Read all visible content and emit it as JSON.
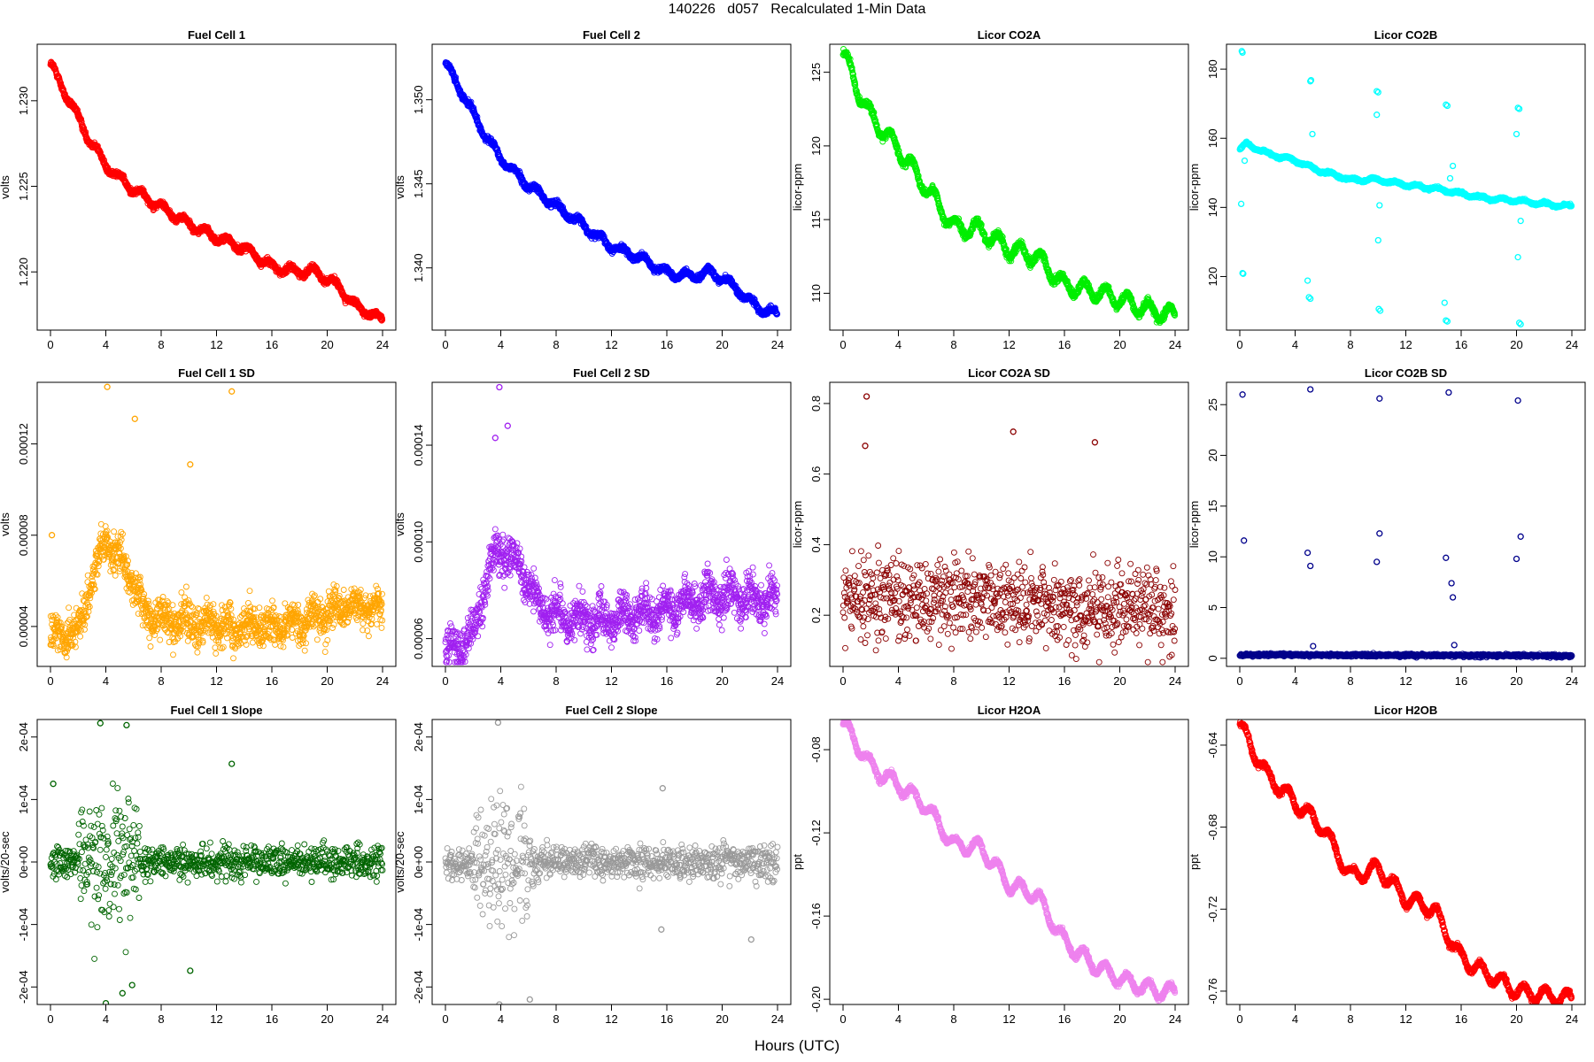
{
  "page": {
    "title": "140226   d057   Recalculated 1-Min Data",
    "xlabel": "Hours (UTC)"
  },
  "chart_data": [
    {
      "title": "Fuel Cell 1",
      "type": "scatter",
      "ylabel": "volts",
      "color": "#ff0000",
      "xlim": [
        0,
        24
      ],
      "ylim": [
        1.2166,
        1.2333
      ],
      "xticks": [
        0,
        4,
        8,
        12,
        16,
        20,
        24
      ],
      "yticks": [
        1.22,
        1.225,
        1.23
      ],
      "ytick_labels": [
        "1.220",
        "1.225",
        "1.230"
      ],
      "trend": [
        [
          0,
          1.2322
        ],
        [
          0.5,
          1.2313
        ],
        [
          1.5,
          1.2298
        ],
        [
          2.5,
          1.2282
        ],
        [
          4,
          1.2262
        ],
        [
          6,
          1.2248
        ],
        [
          8,
          1.2238
        ],
        [
          10,
          1.2228
        ],
        [
          12,
          1.222
        ],
        [
          14,
          1.2214
        ],
        [
          16,
          1.2203
        ],
        [
          18,
          1.22
        ],
        [
          19,
          1.2201
        ],
        [
          20,
          1.2196
        ],
        [
          21,
          1.219
        ],
        [
          22,
          1.218
        ],
        [
          23,
          1.2176
        ],
        [
          24,
          1.2172
        ]
      ],
      "wiggle": 0.00022,
      "noise": 0.00015
    },
    {
      "title": "Fuel Cell 2",
      "type": "scatter",
      "ylabel": "volts",
      "color": "#0000ff",
      "xlim": [
        0,
        24
      ],
      "ylim": [
        1.3363,
        1.3533
      ],
      "xticks": [
        0,
        4,
        8,
        12,
        16,
        20,
        24
      ],
      "yticks": [
        1.34,
        1.345,
        1.35
      ],
      "ytick_labels": [
        "1.340",
        "1.345",
        "1.350"
      ],
      "trend": [
        [
          0,
          1.3522
        ],
        [
          0.5,
          1.3514
        ],
        [
          1.5,
          1.35
        ],
        [
          2.5,
          1.3484
        ],
        [
          4,
          1.3465
        ],
        [
          6,
          1.3449
        ],
        [
          8,
          1.3437
        ],
        [
          10,
          1.3425
        ],
        [
          12,
          1.3413
        ],
        [
          14,
          1.3406
        ],
        [
          16,
          1.3397
        ],
        [
          18,
          1.3395
        ],
        [
          19,
          1.3398
        ],
        [
          20,
          1.3394
        ],
        [
          21,
          1.3388
        ],
        [
          22,
          1.338
        ],
        [
          23,
          1.3375
        ],
        [
          24,
          1.3372
        ]
      ],
      "wiggle": 0.00022,
      "noise": 0.00015
    },
    {
      "title": "Licor CO2A",
      "type": "scatter",
      "ylabel": "licor-ppm",
      "color": "#00ee00",
      "xlim": [
        0,
        24
      ],
      "ylim": [
        107.5,
        126.9
      ],
      "xticks": [
        0,
        4,
        8,
        12,
        16,
        20,
        24
      ],
      "yticks": [
        110,
        115,
        120,
        125
      ],
      "ytick_labels": [
        "110",
        "115",
        "120",
        "125"
      ],
      "trend": [
        [
          0,
          126.3
        ],
        [
          1,
          124
        ],
        [
          2,
          122
        ],
        [
          4,
          119.8
        ],
        [
          6,
          117.2
        ],
        [
          8,
          114.5
        ],
        [
          10,
          114.3
        ],
        [
          12,
          113
        ],
        [
          14,
          112.5
        ],
        [
          16,
          110.5
        ],
        [
          18,
          110.2
        ],
        [
          20,
          109.6
        ],
        [
          22,
          108.9
        ],
        [
          24,
          108.5
        ]
      ],
      "wiggle": 0.55,
      "noise": 0.2
    },
    {
      "title": "Licor CO2B",
      "type": "scatter",
      "ylabel": "licor-ppm",
      "color": "#00ffff",
      "xlim": [
        0,
        24
      ],
      "ylim": [
        104.5,
        187.2
      ],
      "xticks": [
        0,
        4,
        8,
        12,
        16,
        20,
        24
      ],
      "yticks": [
        120,
        140,
        160,
        180
      ],
      "ytick_labels": [
        "120",
        "140",
        "160",
        "180"
      ],
      "trend": [
        [
          0,
          156.8
        ],
        [
          0.5,
          158.4
        ],
        [
          2,
          155.6
        ],
        [
          4,
          153.6
        ],
        [
          5.5,
          151
        ],
        [
          8,
          148
        ],
        [
          10,
          148
        ],
        [
          12,
          146.5
        ],
        [
          14,
          145.5
        ],
        [
          16,
          144
        ],
        [
          18,
          142.5
        ],
        [
          20,
          142
        ],
        [
          22,
          141
        ],
        [
          24,
          140.3
        ]
      ],
      "wiggle": 0.4,
      "noise": 0.3,
      "outliers": [
        [
          0.15,
          185.2
        ],
        [
          0.2,
          184.8
        ],
        [
          0.1,
          141.0
        ],
        [
          0.2,
          121.0
        ],
        [
          0.25,
          120.8
        ],
        [
          0.35,
          153.5
        ],
        [
          5.1,
          176.5
        ],
        [
          5.15,
          176.8
        ],
        [
          5.25,
          161.2
        ],
        [
          4.9,
          118.8
        ],
        [
          5.0,
          114.0
        ],
        [
          5.1,
          113.6
        ],
        [
          9.9,
          173.6
        ],
        [
          10.0,
          173.3
        ],
        [
          9.9,
          166.8
        ],
        [
          10.1,
          140.6
        ],
        [
          10.0,
          130.5
        ],
        [
          10.05,
          110.6
        ],
        [
          10.15,
          110.1
        ],
        [
          14.9,
          169.7
        ],
        [
          15.0,
          169.4
        ],
        [
          15.2,
          148.4
        ],
        [
          15.4,
          152.0
        ],
        [
          14.8,
          112.4
        ],
        [
          14.9,
          107.3
        ],
        [
          15.0,
          107.0
        ],
        [
          20.1,
          168.8
        ],
        [
          20.2,
          168.5
        ],
        [
          20.0,
          161.2
        ],
        [
          20.3,
          136.1
        ],
        [
          20.1,
          125.6
        ],
        [
          20.2,
          106.6
        ],
        [
          20.3,
          106.2
        ]
      ]
    },
    {
      "title": "Fuel Cell 1 SD",
      "type": "scatter",
      "ylabel": "volts",
      "color": "#ffa500",
      "xlim": [
        0,
        24
      ],
      "ylim": [
        2.25e-05,
        0.000147
      ],
      "xticks": [
        0,
        4,
        8,
        12,
        16,
        20,
        24
      ],
      "yticks": [
        4e-05,
        8e-05,
        0.00012
      ],
      "ytick_labels": [
        "0.00004",
        "0.00008",
        "0.00012"
      ],
      "trend": [
        [
          0,
          3.5e-05
        ],
        [
          2,
          3.8e-05
        ],
        [
          3,
          6e-05
        ],
        [
          4,
          7.8e-05
        ],
        [
          5,
          7e-05
        ],
        [
          6,
          6e-05
        ],
        [
          6.8,
          4.5e-05
        ],
        [
          9,
          4.3e-05
        ],
        [
          12,
          4e-05
        ],
        [
          16,
          4e-05
        ],
        [
          18,
          4.2e-05
        ],
        [
          20,
          4.6e-05
        ],
        [
          22,
          5e-05
        ],
        [
          24,
          4.5e-05
        ]
      ],
      "wiggle": 3e-06,
      "noise": 7e-06,
      "outliers": [
        [
          4.1,
          0.000145
        ],
        [
          13.1,
          0.000143
        ],
        [
          10.1,
          0.000111
        ],
        [
          0.1,
          8e-05
        ],
        [
          6.1,
          0.000131
        ]
      ]
    },
    {
      "title": "Fuel Cell 2 SD",
      "type": "scatter",
      "ylabel": "volts",
      "color": "#a020f0",
      "xlim": [
        0,
        24
      ],
      "ylim": [
        4.85e-05,
        0.000166
      ],
      "xticks": [
        0,
        4,
        8,
        12,
        16,
        20,
        24
      ],
      "yticks": [
        6e-05,
        0.0001,
        0.00014
      ],
      "ytick_labels": [
        "0.00006",
        "0.00010",
        "0.00014"
      ],
      "trend": [
        [
          0,
          5.3e-05
        ],
        [
          2,
          6.2e-05
        ],
        [
          3,
          8.5e-05
        ],
        [
          4,
          9.8e-05
        ],
        [
          5,
          9e-05
        ],
        [
          6,
          8.5e-05
        ],
        [
          6.8,
          7.2e-05
        ],
        [
          9,
          6.8e-05
        ],
        [
          12,
          6.8e-05
        ],
        [
          16,
          7.2e-05
        ],
        [
          20,
          7.8e-05
        ],
        [
          24,
          7.5e-05
        ]
      ],
      "wiggle": 4e-06,
      "noise": 7e-06,
      "outliers": [
        [
          3.9,
          0.000164
        ],
        [
          4.5,
          0.000148
        ],
        [
          3.6,
          0.000143
        ],
        [
          0.1,
          5.5e-05
        ]
      ]
    },
    {
      "title": "Licor CO2A SD",
      "type": "scatter",
      "ylabel": "licor-ppm",
      "color": "#8b0000",
      "xlim": [
        0,
        24
      ],
      "ylim": [
        0.055,
        0.86
      ],
      "xticks": [
        0,
        4,
        8,
        12,
        16,
        20,
        24
      ],
      "yticks": [
        0.2,
        0.4,
        0.6,
        0.8
      ],
      "ytick_labels": [
        "0.2",
        "0.4",
        "0.6",
        "0.8"
      ],
      "trend": [
        [
          0,
          0.25
        ],
        [
          24,
          0.22
        ]
      ],
      "wiggle": 0.0,
      "noise": 0.1,
      "outliers": [
        [
          1.7,
          0.82
        ],
        [
          12.3,
          0.72
        ],
        [
          18.2,
          0.69
        ],
        [
          1.6,
          0.68
        ]
      ]
    },
    {
      "title": "Licor CO2B SD",
      "type": "scatter",
      "ylabel": "licor-ppm",
      "color": "#00008b",
      "xlim": [
        0,
        24
      ],
      "ylim": [
        -0.8,
        27.2
      ],
      "xticks": [
        0,
        4,
        8,
        12,
        16,
        20,
        24
      ],
      "yticks": [
        0,
        5,
        10,
        15,
        20,
        25
      ],
      "ytick_labels": [
        "0",
        "5",
        "10",
        "15",
        "20",
        "25"
      ],
      "trend": [
        [
          0,
          0.35
        ],
        [
          24,
          0.25
        ]
      ],
      "wiggle": 0.0,
      "noise": 0.12,
      "outliers": [
        [
          0.2,
          26.0
        ],
        [
          5.1,
          26.5
        ],
        [
          10.1,
          25.6
        ],
        [
          15.1,
          26.2
        ],
        [
          20.1,
          25.4
        ],
        [
          0.3,
          11.6
        ],
        [
          4.9,
          10.4
        ],
        [
          5.1,
          9.1
        ],
        [
          9.9,
          9.5
        ],
        [
          10.1,
          12.3
        ],
        [
          14.9,
          9.9
        ],
        [
          15.3,
          7.4
        ],
        [
          15.4,
          6.0
        ],
        [
          20.0,
          9.8
        ],
        [
          20.3,
          12.0
        ],
        [
          5.3,
          1.2
        ],
        [
          15.5,
          1.3
        ]
      ]
    },
    {
      "title": "Fuel Cell 1 Slope",
      "type": "scatter",
      "ylabel": "volts/20-sec",
      "color": "#006400",
      "xlim": [
        0,
        24
      ],
      "ylim": [
        -0.000228,
        0.000228
      ],
      "xticks": [
        0,
        4,
        8,
        12,
        16,
        20,
        24
      ],
      "yticks": [
        -0.0002,
        -0.0001,
        0.0,
        0.0001,
        0.0002
      ],
      "ytick_labels": [
        "-2e-04",
        "-1e-04",
        "0e+00",
        "1e-04",
        "2e-04"
      ],
      "trend": [
        [
          0,
          0.0
        ],
        [
          24,
          0.0
        ]
      ],
      "wiggle": 0.0,
      "noise": 2.2e-05,
      "wide": {
        "start": 2.0,
        "end": 6.5,
        "extra": 6e-05
      },
      "outliers": [
        [
          3.6,
          0.000222
        ],
        [
          5.5,
          0.000219
        ],
        [
          13.1,
          0.000157
        ],
        [
          0.2,
          0.000125
        ],
        [
          4.0,
          -0.000226
        ],
        [
          5.9,
          -0.000197
        ],
        [
          10.1,
          -0.000174
        ],
        [
          5.2,
          -0.00021
        ]
      ]
    },
    {
      "title": "Fuel Cell 2 Slope",
      "type": "scatter",
      "ylabel": "volts/20-sec",
      "color": "#999999",
      "xlim": [
        0,
        24
      ],
      "ylim": [
        -0.000228,
        0.000228
      ],
      "xticks": [
        0,
        4,
        8,
        12,
        16,
        20,
        24
      ],
      "yticks": [
        -0.0002,
        -0.0001,
        0.0,
        0.0001,
        0.0002
      ],
      "ytick_labels": [
        "-2e-04",
        "-1e-04",
        "0e+00",
        "1e-04",
        "2e-04"
      ],
      "trend": [
        [
          0,
          0.0
        ],
        [
          24,
          0.0
        ]
      ],
      "wiggle": 0.0,
      "noise": 2.2e-05,
      "wide": {
        "start": 2.0,
        "end": 6.5,
        "extra": 6e-05
      },
      "outliers": [
        [
          3.8,
          0.000223
        ],
        [
          3.9,
          -0.000228
        ],
        [
          6.1,
          -0.00022
        ],
        [
          15.7,
          0.000118
        ],
        [
          15.6,
          -0.000108
        ],
        [
          22.1,
          -0.000124
        ]
      ]
    },
    {
      "title": "Licor H2OA",
      "type": "scatter",
      "ylabel": "ppt",
      "color": "#ee82ee",
      "xlim": [
        0,
        24
      ],
      "ylim": [
        -0.2025,
        -0.0655
      ],
      "xticks": [
        0,
        4,
        8,
        12,
        16,
        20,
        24
      ],
      "yticks": [
        -0.2,
        -0.16,
        -0.12,
        -0.08
      ],
      "ytick_labels": [
        "-0.20",
        "-0.16",
        "-0.12",
        "-0.08"
      ],
      "trend": [
        [
          0,
          -0.067
        ],
        [
          1,
          -0.077
        ],
        [
          2,
          -0.088
        ],
        [
          4,
          -0.097
        ],
        [
          6,
          -0.107
        ],
        [
          8,
          -0.126
        ],
        [
          10,
          -0.127
        ],
        [
          12,
          -0.145
        ],
        [
          14,
          -0.15
        ],
        [
          16,
          -0.172
        ],
        [
          18,
          -0.183
        ],
        [
          20,
          -0.19
        ],
        [
          22,
          -0.195
        ],
        [
          24,
          -0.197
        ]
      ],
      "wiggle": 0.0035,
      "noise": 0.0011
    },
    {
      "title": "Licor H2OB",
      "type": "scatter",
      "ylabel": "ppt",
      "color": "#ff0000",
      "xlim": [
        0,
        24
      ],
      "ylim": [
        -0.7665,
        -0.6275
      ],
      "xticks": [
        0,
        4,
        8,
        12,
        16,
        20,
        24
      ],
      "yticks": [
        -0.76,
        -0.72,
        -0.68,
        -0.64
      ],
      "ytick_labels": [
        "-0.76",
        "-0.72",
        "-0.68",
        "-0.64"
      ],
      "trend": [
        [
          0,
          -0.63
        ],
        [
          1,
          -0.643
        ],
        [
          2,
          -0.655
        ],
        [
          4,
          -0.668
        ],
        [
          6,
          -0.68
        ],
        [
          8,
          -0.704
        ],
        [
          10,
          -0.7
        ],
        [
          12,
          -0.715
        ],
        [
          14,
          -0.72
        ],
        [
          16,
          -0.744
        ],
        [
          18,
          -0.752
        ],
        [
          20,
          -0.76
        ],
        [
          22,
          -0.762
        ],
        [
          24,
          -0.764
        ]
      ],
      "wiggle": 0.0035,
      "noise": 0.0011
    }
  ]
}
